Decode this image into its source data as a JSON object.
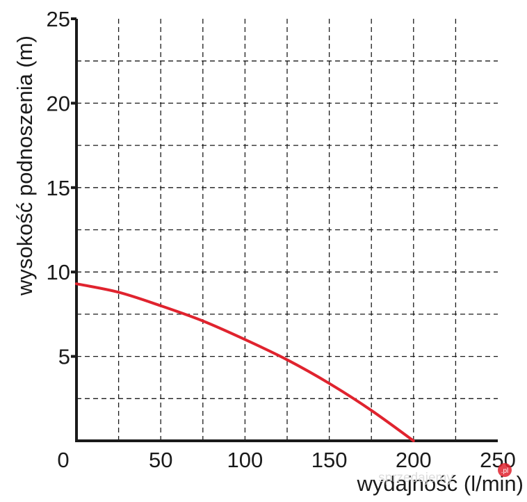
{
  "chart_data": {
    "type": "line",
    "title": "",
    "xlabel": "wydajność (l/min)",
    "ylabel": "wysokość podnoszenia (m)",
    "xlim": [
      0,
      250
    ],
    "ylim": [
      0,
      25
    ],
    "x_ticks": [
      0,
      50,
      100,
      150,
      200,
      250
    ],
    "y_ticks": [
      5,
      10,
      15,
      20,
      25
    ],
    "x_grid": [
      25,
      50,
      75,
      100,
      125,
      150,
      175,
      200,
      225
    ],
    "y_grid": [
      2.5,
      5,
      7.5,
      10,
      12.5,
      15,
      17.5,
      20,
      22.5
    ],
    "grid": true,
    "series": [
      {
        "color": "#e0232e",
        "x": [
          0,
          25,
          50,
          75,
          100,
          125,
          150,
          175,
          200
        ],
        "y": [
          9.3,
          8.8,
          8.0,
          7.1,
          6.0,
          4.8,
          3.4,
          1.8,
          0
        ]
      }
    ]
  },
  "watermark": {
    "text": "sprzedajemy",
    "badge": ".pl",
    "badge_color": "#e0232e"
  }
}
